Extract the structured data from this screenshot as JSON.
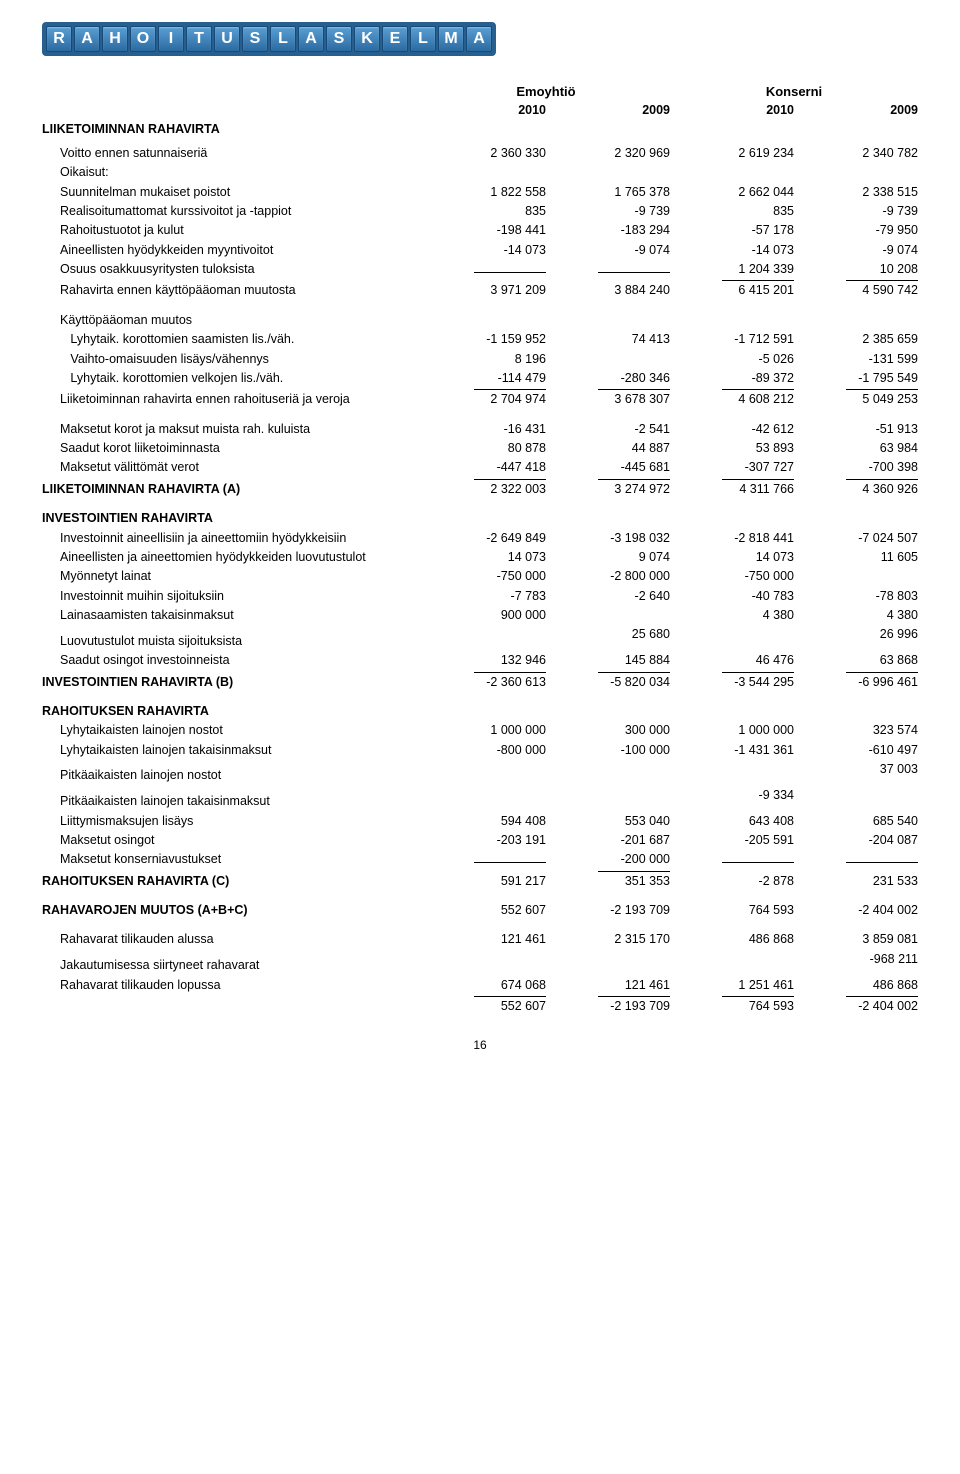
{
  "title_letters": [
    "R",
    "A",
    "H",
    "O",
    "I",
    "T",
    "U",
    "S",
    "L",
    "A",
    "S",
    "K",
    "E",
    "L",
    "M",
    "A"
  ],
  "group_headers": [
    "Emoyhtiö",
    "Konserni"
  ],
  "years": [
    "2010",
    "2009",
    "2010",
    "2009"
  ],
  "page_number": "16",
  "rows": [
    {
      "type": "heading",
      "label": "LIIKETOIMINNAN RAHAVIRTA"
    },
    {
      "type": "spacer-s"
    },
    {
      "type": "data",
      "indent": true,
      "label": "Voitto ennen satunnaiseriä",
      "v": [
        "2 360 330",
        "2 320 969",
        "2 619 234",
        "2 340 782"
      ]
    },
    {
      "type": "data",
      "indent": true,
      "label": "Oikaisut:",
      "v": [
        "",
        "",
        "",
        ""
      ]
    },
    {
      "type": "data",
      "indent": true,
      "label": "Suunnitelman mukaiset poistot",
      "v": [
        "1 822 558",
        "1 765 378",
        "2 662 044",
        "2 338 515"
      ]
    },
    {
      "type": "data",
      "indent": true,
      "label": "Realisoitumattomat kurssivoitot ja -tappiot",
      "v": [
        "835",
        "-9 739",
        "835",
        "-9 739"
      ]
    },
    {
      "type": "data",
      "indent": true,
      "label": "Rahoitustuotot ja kulut",
      "v": [
        "-198 441",
        "-183 294",
        "-57 178",
        "-79 950"
      ]
    },
    {
      "type": "data",
      "indent": true,
      "label": "Aineellisten hyödykkeiden myyntivoitot",
      "v": [
        "-14 073",
        "-9 074",
        "-14 073",
        "-9 074"
      ]
    },
    {
      "type": "data",
      "indent": true,
      "label": "Osuus osakkuusyritysten tuloksista",
      "v": [
        "",
        "",
        "1 204 339",
        "10 208"
      ],
      "underline": true
    },
    {
      "type": "data",
      "indent": true,
      "label": "Rahavirta ennen käyttöpääoman muutosta",
      "v": [
        "3 971 209",
        "3 884 240",
        "6 415 201",
        "4 590 742"
      ]
    },
    {
      "type": "spacer"
    },
    {
      "type": "data",
      "indent": true,
      "label": "Käyttöpääoman muutos",
      "v": [
        "",
        "",
        "",
        ""
      ]
    },
    {
      "type": "data",
      "indent": true,
      "label": "   Lyhytaik. korottomien saamisten lis./väh.",
      "v": [
        "-1 159 952",
        "74 413",
        "-1 712 591",
        "2 385 659"
      ]
    },
    {
      "type": "data",
      "indent": true,
      "label": "   Vaihto-omaisuuden lisäys/vähennys",
      "v": [
        "8 196",
        "",
        "-5 026",
        "-131 599"
      ]
    },
    {
      "type": "data",
      "indent": true,
      "label": "   Lyhytaik. korottomien velkojen lis./väh.",
      "v": [
        "-114 479",
        "-280 346",
        "-89 372",
        "-1 795 549"
      ],
      "underline": true
    },
    {
      "type": "data",
      "indent": true,
      "label": "Liiketoiminnan rahavirta ennen rahoituseriä ja veroja",
      "v": [
        "2 704 974",
        "3 678 307",
        "4 608 212",
        "5 049 253"
      ]
    },
    {
      "type": "spacer"
    },
    {
      "type": "data",
      "indent": true,
      "label": "Maksetut korot ja maksut muista rah. kuluista",
      "v": [
        "-16 431",
        "-2 541",
        "-42 612",
        "-51 913"
      ]
    },
    {
      "type": "data",
      "indent": true,
      "label": "Saadut korot liiketoiminnasta",
      "v": [
        "80 878",
        "44 887",
        "53 893",
        "63 984"
      ]
    },
    {
      "type": "data",
      "indent": true,
      "label": "Maksetut välittömät verot",
      "v": [
        "-447 418",
        "-445 681",
        "-307 727",
        "-700 398"
      ],
      "underline": true
    },
    {
      "type": "data",
      "bold": true,
      "label": "LIIKETOIMINNAN RAHAVIRTA (A)",
      "v": [
        "2 322 003",
        "3 274 972",
        "4 311 766",
        "4 360 926"
      ]
    },
    {
      "type": "spacer"
    },
    {
      "type": "heading",
      "label": "INVESTOINTIEN RAHAVIRTA"
    },
    {
      "type": "data",
      "indent": true,
      "label": "Investoinnit aineellisiin ja aineettomiin hyödykkeisiin",
      "v": [
        "-2 649 849",
        "-3 198 032",
        "-2 818 441",
        "-7 024 507"
      ]
    },
    {
      "type": "data",
      "indent": true,
      "label": "Aineellisten ja aineettomien hyödykkeiden luovutustulot",
      "v": [
        "14 073",
        "9 074",
        "14 073",
        "11 605"
      ]
    },
    {
      "type": "data",
      "indent": true,
      "label": "Myönnetyt lainat",
      "v": [
        "-750 000",
        "-2 800 000",
        "-750 000",
        ""
      ]
    },
    {
      "type": "data",
      "indent": true,
      "label": "Investoinnit muihin sijoituksiin",
      "v": [
        "-7 783",
        "-2 640",
        "-40 783",
        "-78 803"
      ]
    },
    {
      "type": "data",
      "indent": true,
      "label": "Lainasaamisten takaisinmaksut",
      "v": [
        "900 000",
        "",
        "4 380",
        "4 380"
      ]
    },
    {
      "type": "data",
      "indent": true,
      "label": "Luovutustulot muista sijoituksista",
      "v": [
        "",
        "25 680",
        "",
        "26 996"
      ]
    },
    {
      "type": "data",
      "indent": true,
      "label": "Saadut osingot investoinneista",
      "v": [
        "132 946",
        "145 884",
        "46 476",
        "63 868"
      ],
      "underline": true
    },
    {
      "type": "data",
      "bold": true,
      "label": "INVESTOINTIEN RAHAVIRTA (B)",
      "v": [
        "-2 360 613",
        "-5 820 034",
        "-3 544 295",
        "-6 996 461"
      ]
    },
    {
      "type": "spacer"
    },
    {
      "type": "heading",
      "label": "RAHOITUKSEN RAHAVIRTA"
    },
    {
      "type": "data",
      "indent": true,
      "label": "Lyhytaikaisten lainojen nostot",
      "v": [
        "1 000 000",
        "300 000",
        "1 000 000",
        "323 574"
      ]
    },
    {
      "type": "data",
      "indent": true,
      "label": "Lyhytaikaisten lainojen takaisinmaksut",
      "v": [
        "-800 000",
        "-100 000",
        "-1 431 361",
        "-610 497"
      ]
    },
    {
      "type": "data",
      "indent": true,
      "label": "Pitkäaikaisten lainojen nostot",
      "v": [
        "",
        "",
        "",
        "37 003"
      ]
    },
    {
      "type": "data",
      "indent": true,
      "label": "Pitkäaikaisten lainojen takaisinmaksut",
      "v": [
        "",
        "",
        "-9 334",
        ""
      ]
    },
    {
      "type": "data",
      "indent": true,
      "label": "Liittymismaksujen lisäys",
      "v": [
        "594 408",
        "553 040",
        "643 408",
        "685 540"
      ]
    },
    {
      "type": "data",
      "indent": true,
      "label": "Maksetut osingot",
      "v": [
        "-203 191",
        "-201 687",
        "-205 591",
        "-204 087"
      ]
    },
    {
      "type": "data",
      "indent": true,
      "label": "Maksetut konserniavustukset",
      "v": [
        "",
        "-200 000",
        "",
        ""
      ],
      "underline": true
    },
    {
      "type": "data",
      "bold": true,
      "label": "RAHOITUKSEN RAHAVIRTA (C)",
      "v": [
        "591 217",
        "351 353",
        "-2 878",
        "231 533"
      ]
    },
    {
      "type": "spacer"
    },
    {
      "type": "data",
      "bold": true,
      "label": "RAHAVAROJEN MUUTOS (A+B+C)",
      "v": [
        "552 607",
        "-2 193 709",
        "764 593",
        "-2 404 002"
      ]
    },
    {
      "type": "spacer"
    },
    {
      "type": "data",
      "indent": true,
      "label": "Rahavarat tilikauden alussa",
      "v": [
        "121 461",
        "2 315 170",
        "486 868",
        "3 859 081"
      ]
    },
    {
      "type": "data",
      "indent": true,
      "label": "Jakautumisessa siirtyneet rahavarat",
      "v": [
        "",
        "",
        "",
        "-968 211"
      ]
    },
    {
      "type": "data",
      "indent": true,
      "label": "Rahavarat tilikauden lopussa",
      "v": [
        "674 068",
        "121 461",
        "1 251 461",
        "486 868"
      ],
      "underline": true
    },
    {
      "type": "data",
      "indent": true,
      "label": "",
      "v": [
        "552 607",
        "-2 193 709",
        "764 593",
        "-2 404 002"
      ]
    }
  ]
}
